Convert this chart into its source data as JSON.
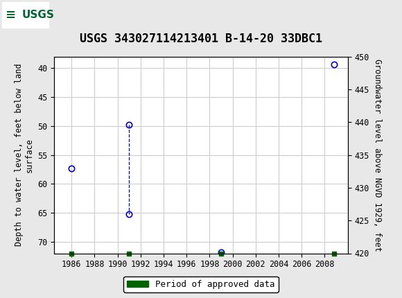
{
  "title": "USGS 343027114213401 B-14-20 33DBC1",
  "ylabel_left": "Depth to water level, feet below land\nsurface",
  "ylabel_right": "Groundwater level above NGVD 1929, feet",
  "data_points": [
    {
      "year": 1986.0,
      "depth": 57.3
    },
    {
      "year": 1991.0,
      "depth": 49.8
    },
    {
      "year": 1991.0,
      "depth": 65.2
    },
    {
      "year": 1999.0,
      "depth": 71.8
    },
    {
      "year": 2008.8,
      "depth": 39.3
    }
  ],
  "dashed_line_x": 1991.0,
  "dashed_line_y": [
    49.8,
    65.2
  ],
  "approved_periods": [
    1986.0,
    1991.0,
    1999.0,
    2008.8
  ],
  "ylim_left_top": 38,
  "ylim_left_bottom": 72,
  "ylim_right_top": 450,
  "ylim_right_bottom": 420,
  "xlim": [
    1984.5,
    2010.0
  ],
  "xticks": [
    1986,
    1988,
    1990,
    1992,
    1994,
    1996,
    1998,
    2000,
    2002,
    2004,
    2006,
    2008
  ],
  "yticks_left": [
    40,
    45,
    50,
    55,
    60,
    65,
    70
  ],
  "yticks_right": [
    450,
    445,
    440,
    435,
    430,
    425,
    420
  ],
  "marker_color": "#0000cc",
  "dashed_line_color": "#0000cc",
  "approved_color": "#006400",
  "header_color": "#006633",
  "grid_color": "#c8c8c8",
  "plot_bg": "#ffffff",
  "fig_bg": "#e8e8e8",
  "title_fontsize": 12,
  "axis_label_fontsize": 8.5,
  "tick_fontsize": 8.5,
  "legend_fontsize": 9,
  "marker_size": 6,
  "approved_marker_size": 5
}
